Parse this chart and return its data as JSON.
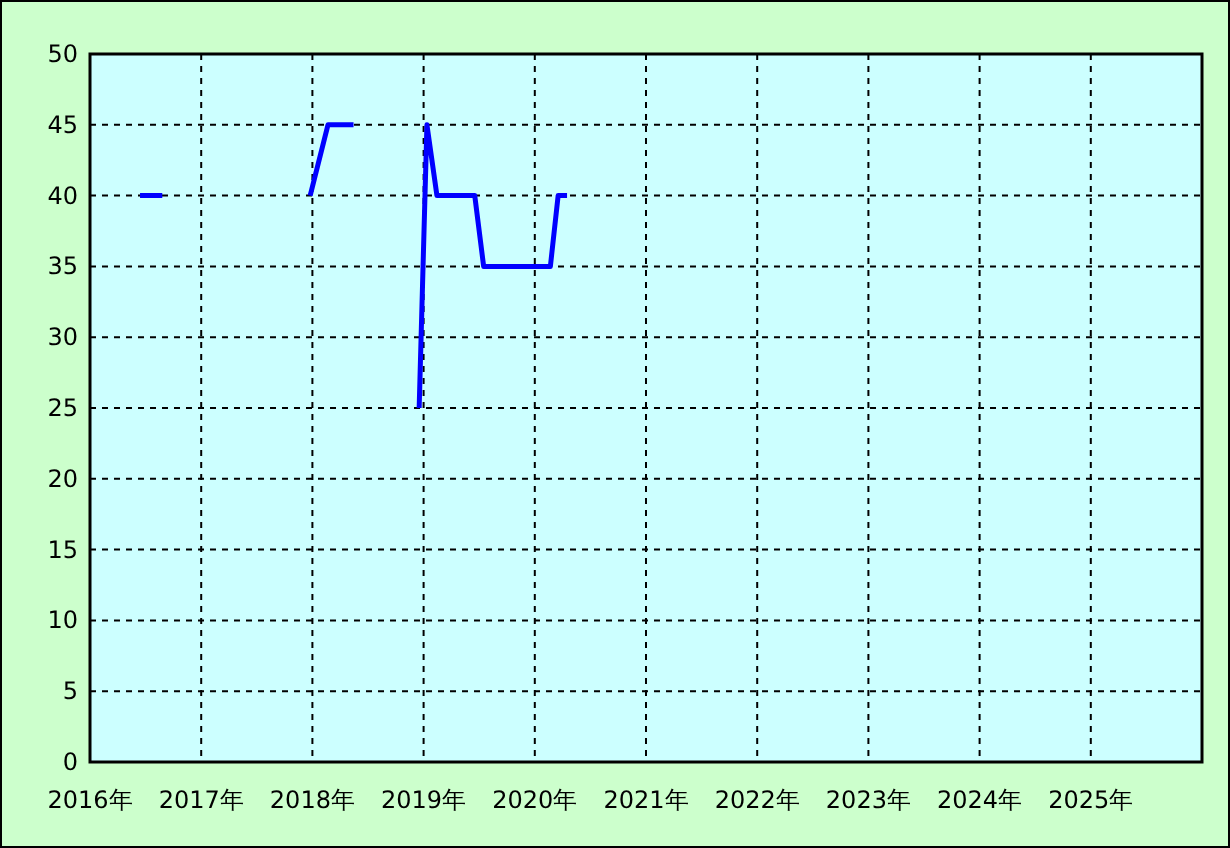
{
  "chart_data": {
    "type": "line",
    "xlim": [
      2016,
      2026
    ],
    "xticks": [
      {
        "value": 2016,
        "label": "2016年"
      },
      {
        "value": 2017,
        "label": "2017年"
      },
      {
        "value": 2018,
        "label": "2018年"
      },
      {
        "value": 2019,
        "label": "2019年"
      },
      {
        "value": 2020,
        "label": "2020年"
      },
      {
        "value": 2021,
        "label": "2021年"
      },
      {
        "value": 2022,
        "label": "2022年"
      },
      {
        "value": 2023,
        "label": "2023年"
      },
      {
        "value": 2024,
        "label": "2024年"
      },
      {
        "value": 2025,
        "label": "2025年"
      }
    ],
    "ylim": [
      0,
      50
    ],
    "yticks": [
      0,
      5,
      10,
      15,
      20,
      25,
      30,
      35,
      40,
      45,
      50
    ],
    "grid": true,
    "line_style": "solid",
    "marker": "none",
    "series": [
      {
        "color": "#0000ff",
        "x": [
          2016.45,
          2016.65,
          null,
          2017.98,
          2018.14,
          2018.37,
          null,
          2018.96,
          2019.03,
          2019.12,
          2019.46,
          2019.54,
          2020.14,
          2020.21,
          2020.29
        ],
        "values": [
          40,
          40,
          null,
          40,
          45,
          45,
          null,
          25,
          45,
          40,
          40,
          35,
          35,
          40,
          40
        ]
      }
    ]
  }
}
